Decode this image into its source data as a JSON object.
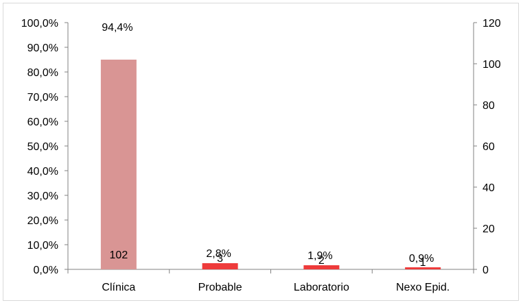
{
  "chart_data": {
    "type": "bar",
    "categories": [
      "Clínica",
      "Probable",
      "Laboratorio",
      "Nexo Epid."
    ],
    "series": [
      {
        "axis": "right",
        "values": [
          102,
          3,
          2,
          1
        ],
        "labels": [
          "102",
          "3",
          "2",
          "1"
        ]
      },
      {
        "axis": "left",
        "values": [
          94.4,
          2.8,
          1.9,
          0.9
        ],
        "labels": [
          "94,4%",
          "2,8%",
          "1,9%",
          "0,9%"
        ]
      }
    ],
    "left_axis": {
      "ylim": [
        0,
        100
      ],
      "ticks": [
        {
          "value": 0,
          "label": "0,0%"
        },
        {
          "value": 10,
          "label": "10,0%"
        },
        {
          "value": 20,
          "label": "20,0%"
        },
        {
          "value": 30,
          "label": "30,0%"
        },
        {
          "value": 40,
          "label": "40,0%"
        },
        {
          "value": 50,
          "label": "50,0%"
        },
        {
          "value": 60,
          "label": "60,0%"
        },
        {
          "value": 70,
          "label": "70,0%"
        },
        {
          "value": 80,
          "label": "80,0%"
        },
        {
          "value": 90,
          "label": "90,0%"
        },
        {
          "value": 100,
          "label": "100,0%"
        }
      ]
    },
    "right_axis": {
      "ylim": [
        0,
        120
      ],
      "ticks": [
        {
          "value": 0,
          "label": "0"
        },
        {
          "value": 20,
          "label": "20"
        },
        {
          "value": 40,
          "label": "40"
        },
        {
          "value": 60,
          "label": "60"
        },
        {
          "value": 80,
          "label": "80"
        },
        {
          "value": 100,
          "label": "100"
        },
        {
          "value": 120,
          "label": "120"
        }
      ]
    },
    "colors": {
      "Clínica": "#d99594",
      "default": "#ee3b3b",
      "axis": "#808080"
    },
    "grid": false,
    "legend": "none"
  }
}
